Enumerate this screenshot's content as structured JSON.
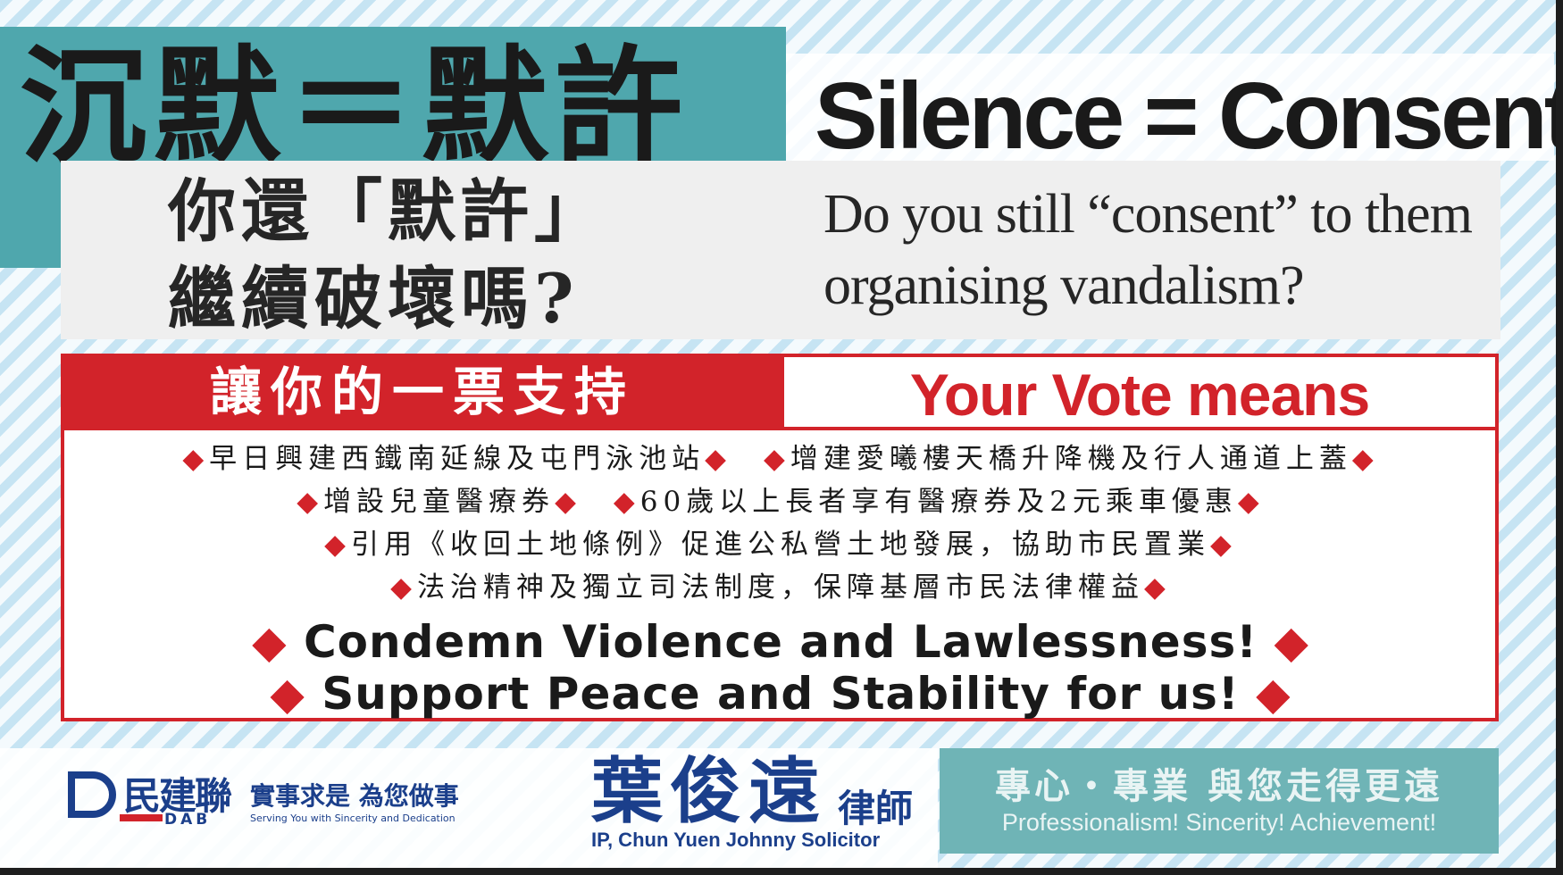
{
  "title": {
    "zh": "沉默＝默許",
    "en": "Silence = Consent"
  },
  "question": {
    "zh": "你還「默許」\n繼續破壞嗎?",
    "en": "Do you still “consent” to them\norganising vandalism?"
  },
  "vote": {
    "header_zh": "讓你的一票支持",
    "header_en": "Your Vote means",
    "pledges": [
      {
        "a": "早日興建西鐵南延線及屯門泳池站",
        "b": "增建愛曦樓天橋升降機及行人通道上蓋"
      },
      {
        "a": "增設兒童醫療券",
        "b": "60歲以上長者享有醫療券及2元乘車優惠"
      },
      {
        "a": "引用《收回土地條例》促進公私營土地發展，協助市民置業"
      },
      {
        "a": "法治精神及獨立司法制度，保障基層市民法律權益"
      }
    ],
    "slogans": [
      "Condemn Violence and Lawlessness!",
      "Support Peace and Stability for us!"
    ],
    "bullet": "◆"
  },
  "footer": {
    "party_logo_zh": "民建聯",
    "party_logo_en": "DAB",
    "party_motto_zh": "實事求是 為您做事",
    "party_motto_en": "Serving You with Sincerity and Dedication",
    "candidate_zh": "葉俊遠",
    "candidate_title_zh": "律師",
    "candidate_en": "IP, Chun Yuen Johnny Solicitor",
    "tagline_zh": "專心・專業 與您走得更遠",
    "tagline_en": "Professionalism! Sincerity! Achievement!"
  },
  "colors": {
    "teal": "#4fa7ad",
    "red": "#d2232a",
    "navy": "#1b3f8b"
  }
}
